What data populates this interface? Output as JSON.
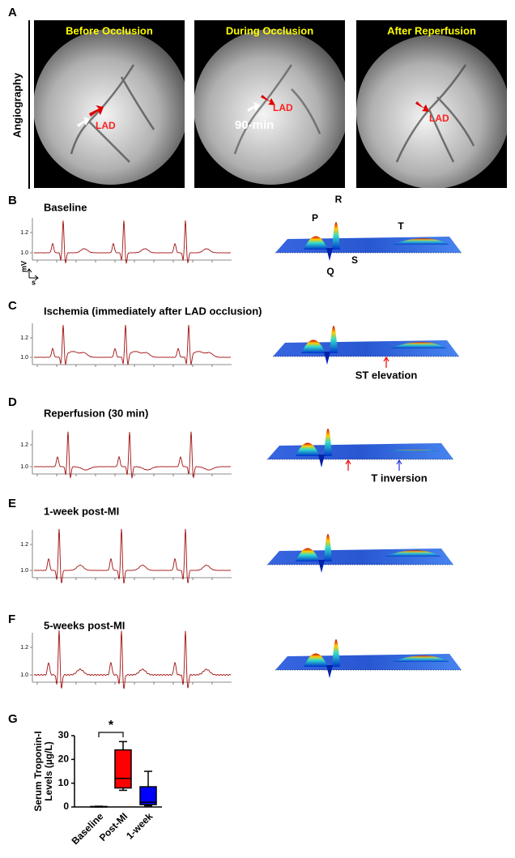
{
  "figure": {
    "panel_labels": [
      "A",
      "B",
      "C",
      "D",
      "E",
      "F",
      "G"
    ],
    "angiography": {
      "row_label": "Angiography",
      "panels": [
        {
          "title": "Before Occlusion",
          "labels": [
            "LAD"
          ]
        },
        {
          "title": "During Occlusion",
          "labels": [
            "LAD",
            "90-min"
          ]
        },
        {
          "title": "After Reperfusion",
          "labels": [
            "LAD"
          ]
        }
      ]
    },
    "ecg": [
      {
        "title": "Baseline",
        "yticks": [
          {
            "value": 1.0,
            "label": "1.0"
          },
          1.2
        ],
        "y_unit": "mV",
        "x_unit": "s",
        "wave_labels": [
          "P",
          "R",
          "T",
          "Q",
          "S"
        ]
      },
      {
        "title": "Ischemia (immediately after LAD occlusion)",
        "yticks": [
          {
            "value": 1.0,
            "label": "1.0"
          },
          1.2
        ],
        "annotation": "ST elevation"
      },
      {
        "title": "Reperfusion (30 min)",
        "yticks": [
          {
            "value": 1.0,
            "label": "1.0"
          },
          1.2
        ],
        "annotation": "T inversion"
      },
      {
        "title": "1-week post-MI",
        "yticks": [
          {
            "value": 1.0,
            "label": "1.0"
          },
          1.2
        ]
      },
      {
        "title": "5-weeks post-MI",
        "yticks": [
          {
            "value": 1.0,
            "label": "1.0"
          },
          1.2
        ]
      }
    ]
  },
  "chart_data": {
    "type": "box",
    "ylabel": [
      "Serum Troponin-I",
      "Levels (µg/L)"
    ],
    "categories": [
      "Baseline",
      "Post-MI",
      "1-week"
    ],
    "colors": [
      "#ffffff",
      "#ff0000",
      "#0000ff"
    ],
    "boxes": [
      {
        "min": 0,
        "q1": 0,
        "median": 0.1,
        "q3": 0.2,
        "max": 0.3
      },
      {
        "min": 7,
        "q1": 8,
        "median": 12,
        "q3": 24,
        "max": 27.5
      },
      {
        "min": 0.5,
        "q1": 1,
        "median": 2,
        "q3": 8.5,
        "max": 15
      }
    ],
    "ylim": [
      0,
      30
    ],
    "yticks": [
      0,
      10,
      20,
      30
    ],
    "significance": "*"
  }
}
